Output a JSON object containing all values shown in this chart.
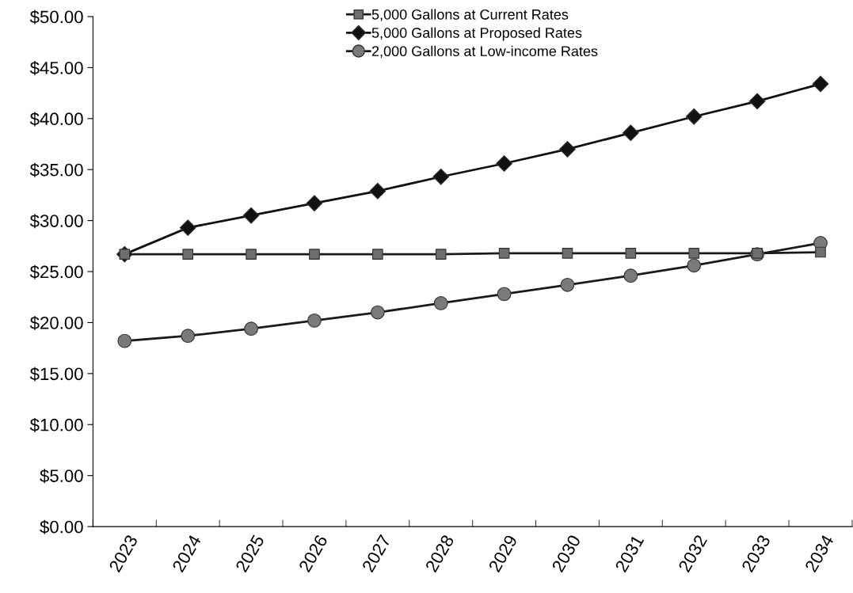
{
  "chart_data": {
    "type": "line",
    "categories": [
      "2023",
      "2024",
      "2025",
      "2026",
      "2027",
      "2028",
      "2029",
      "2030",
      "2031",
      "2032",
      "2033",
      "2034"
    ],
    "series": [
      {
        "name": "5,000 Gallons at Current Rates",
        "color": "#1a1a1a",
        "marker": "square",
        "colors": [
          "#6e6e6e",
          "#6e6e6e",
          "#6e6e6e",
          "#6e6e6e",
          "#6e6e6e",
          "#6e6e6e",
          "#6e6e6e",
          "#6e6e6e",
          "#6e6e6e",
          "#6e6e6e",
          "#6e6e6e",
          "#6e6e6e"
        ],
        "values": [
          26.7,
          26.7,
          26.7,
          26.7,
          26.7,
          26.7,
          26.8,
          26.8,
          26.8,
          26.8,
          26.8,
          26.9
        ]
      },
      {
        "name": "5,000 Gallons at Proposed Rates",
        "color": "#111111",
        "marker": "diamond",
        "colors": [
          "#111111",
          "#111111",
          "#111111",
          "#111111",
          "#111111",
          "#111111",
          "#111111",
          "#111111",
          "#111111",
          "#111111",
          "#111111",
          "#111111"
        ],
        "values": [
          26.7,
          29.3,
          30.5,
          31.7,
          32.9,
          34.3,
          35.6,
          37.0,
          38.6,
          40.2,
          41.7,
          43.4
        ]
      },
      {
        "name": "2,000 Gallons at Low-income Rates",
        "color": "#1a1a1a",
        "marker": "circle",
        "colors": [
          "#7a7a7a",
          "#7a7a7a",
          "#7a7a7a",
          "#7a7a7a",
          "#7a7a7a",
          "#7a7a7a",
          "#7a7a7a",
          "#7a7a7a",
          "#7a7a7a",
          "#7a7a7a",
          "#7a7a7a",
          "#7a7a7a"
        ],
        "values": [
          18.2,
          18.7,
          19.4,
          20.2,
          21.0,
          21.9,
          22.8,
          23.7,
          24.6,
          25.6,
          26.7,
          27.8
        ]
      }
    ],
    "ylim": [
      0,
      50
    ],
    "yticks": [
      {
        "value": 0,
        "label": "$0.00"
      },
      {
        "value": 5,
        "label": "$5.00"
      },
      {
        "value": 10,
        "label": "$10.00"
      },
      {
        "value": 15,
        "label": "$15.00"
      },
      {
        "value": 20,
        "label": "$20.00"
      },
      {
        "value": 25,
        "label": "$25.00"
      },
      {
        "value": 30,
        "label": "$30.00"
      },
      {
        "value": 35,
        "label": "$35.00"
      },
      {
        "value": 40,
        "label": "$40.00"
      },
      {
        "value": 45,
        "label": "$45.00"
      },
      {
        "value": 50,
        "label": "$50.00"
      }
    ],
    "grid": false,
    "legend": "top",
    "line_style": "solid"
  }
}
